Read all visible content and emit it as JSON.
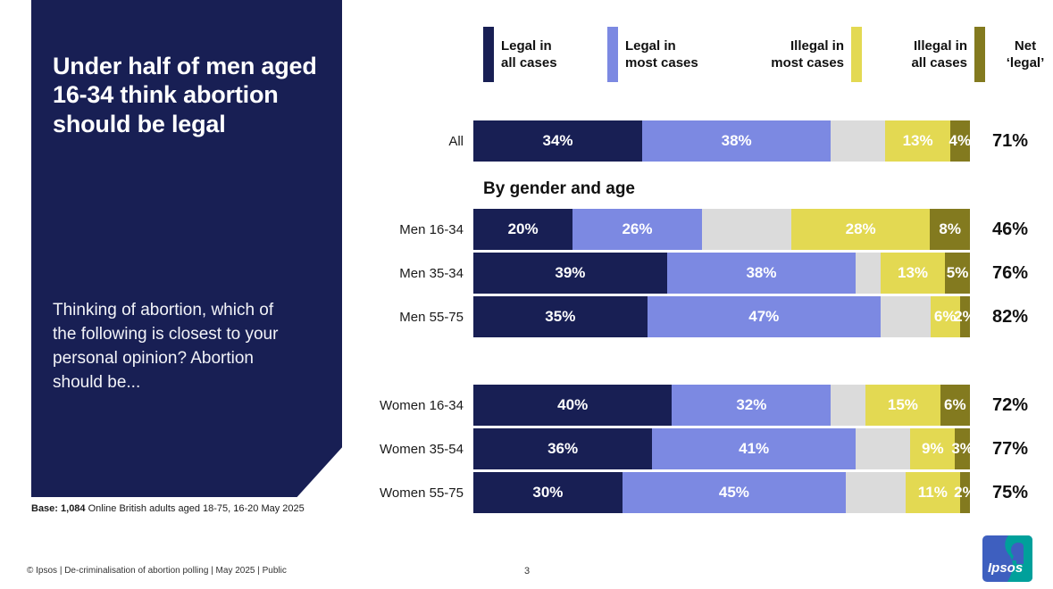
{
  "slide": {
    "title": "Under half of men aged\n16-34 think abortion\nshould be legal",
    "question": "Thinking of abortion, which of\nthe following is closest to your\npersonal opinion? Abortion\nshould be...",
    "base_bold": "Base: 1,084",
    "base_rest": " Online British adults aged 18-75, 16-20 May 2025",
    "footer_text": "© Ipsos | De-criminalisation of abortion polling | May 2025 | Public",
    "page_number": "3",
    "logo_text": "Ipsos"
  },
  "colors": {
    "panel_navy": "#181F54",
    "legal_all": "#181F54",
    "legal_most": "#7C89E2",
    "unlabeled": "#DBDBDB",
    "illegal_most": "#E3D952",
    "illegal_all": "#837A1F",
    "logo_blue": "#3E5FBF",
    "logo_teal": "#00A09B"
  },
  "chart_data": {
    "type": "bar",
    "stacked": true,
    "orientation": "horizontal",
    "title": "Under half of men aged 16-34 think abortion should be legal",
    "section_heading": "By gender and age",
    "net_header": "Net\n‘legal’",
    "xlim": [
      0,
      100
    ],
    "legend_position": "top",
    "legend": [
      {
        "label": "Legal in\nall cases",
        "color": "#181F54",
        "swatch_side": "left"
      },
      {
        "label": "Legal in\nmost cases",
        "color": "#7C89E2",
        "swatch_side": "left"
      },
      {
        "label": "Illegal in\nmost cases",
        "color": "#E3D952",
        "swatch_side": "right"
      },
      {
        "label": "Illegal in\nall cases",
        "color": "#837A1F",
        "swatch_side": "right"
      }
    ],
    "unlabeled_segment_note": "grey segment has no data label; value estimated as remainder to 100%",
    "unlabeled_segment_color": "#DBDBDB",
    "categories": [
      "All",
      "Men 16-34",
      "Men 35-34",
      "Men 55-75",
      "Women 16-34",
      "Women 35-54",
      "Women 55-75"
    ],
    "rows": [
      {
        "label": "All",
        "group": "all",
        "legal_all": 34,
        "legal_most": 38,
        "unlabeled": 11,
        "illegal_most": 13,
        "illegal_all": 4,
        "net_legal": "71%"
      },
      {
        "label": "Men 16-34",
        "group": "men",
        "legal_all": 20,
        "legal_most": 26,
        "unlabeled": 18,
        "illegal_most": 28,
        "illegal_all": 8,
        "net_legal": "46%"
      },
      {
        "label": "Men 35-34",
        "group": "men",
        "legal_all": 39,
        "legal_most": 38,
        "unlabeled": 5,
        "illegal_most": 13,
        "illegal_all": 5,
        "net_legal": "76%"
      },
      {
        "label": "Men 55-75",
        "group": "men",
        "legal_all": 35,
        "legal_most": 47,
        "unlabeled": 10,
        "illegal_most": 6,
        "illegal_all": 2,
        "net_legal": "82%"
      },
      {
        "label": "Women 16-34",
        "group": "women",
        "legal_all": 40,
        "legal_most": 32,
        "unlabeled": 7,
        "illegal_most": 15,
        "illegal_all": 6,
        "net_legal": "72%"
      },
      {
        "label": "Women 35-54",
        "group": "women",
        "legal_all": 36,
        "legal_most": 41,
        "unlabeled": 11,
        "illegal_most": 9,
        "illegal_all": 3,
        "net_legal": "77%"
      },
      {
        "label": "Women 55-75",
        "group": "women",
        "legal_all": 30,
        "legal_most": 45,
        "unlabeled": 12,
        "illegal_most": 11,
        "illegal_all": 2,
        "net_legal": "75%"
      }
    ]
  }
}
